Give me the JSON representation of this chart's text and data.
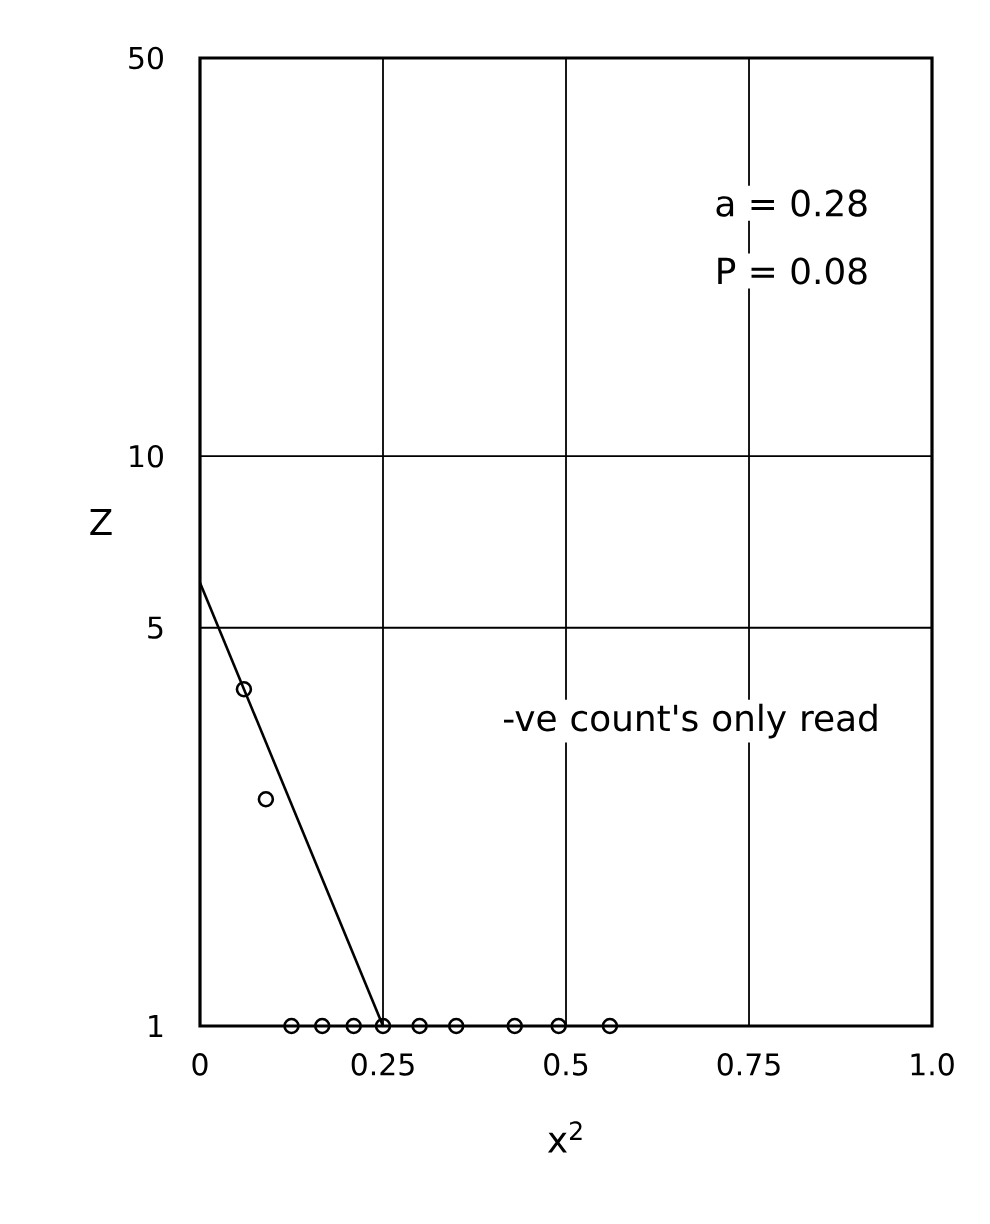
{
  "chart_data": {
    "type": "scatter",
    "xlabel": "x$^{2}$",
    "ylabel": "Z",
    "xlim": [
      0,
      1.0
    ],
    "ylim": [
      1,
      50
    ],
    "log": "y",
    "grid": true,
    "xticks": [
      0,
      {
        "value": 0.25,
        "label": "0.25"
      },
      {
        "value": 0.5,
        "label": "0.5"
      },
      {
        "value": 0.75,
        "label": "0.75"
      },
      {
        "value": 1.0,
        "label": "1.0"
      }
    ],
    "yticks": [
      1,
      5,
      10,
      50
    ],
    "series": [
      {
        "marker": "circle",
        "color": "#000000",
        "x": [
          0.06,
          0.09,
          0.125,
          0.167,
          0.21,
          0.25,
          0.3,
          0.35,
          0.43,
          0.49,
          0.56
        ],
        "values": [
          3.9,
          2.5,
          1,
          1,
          1,
          1,
          1,
          1,
          1,
          1,
          1
        ]
      },
      {
        "type": "line",
        "marker": "none",
        "line_style": "solid",
        "color": "#000000",
        "x": [
          0,
          0.25
        ],
        "values": [
          6,
          1
        ]
      }
    ],
    "annotations": [
      "a = 0.28",
      "P = 0.08",
      "-ve count's only read"
    ]
  }
}
